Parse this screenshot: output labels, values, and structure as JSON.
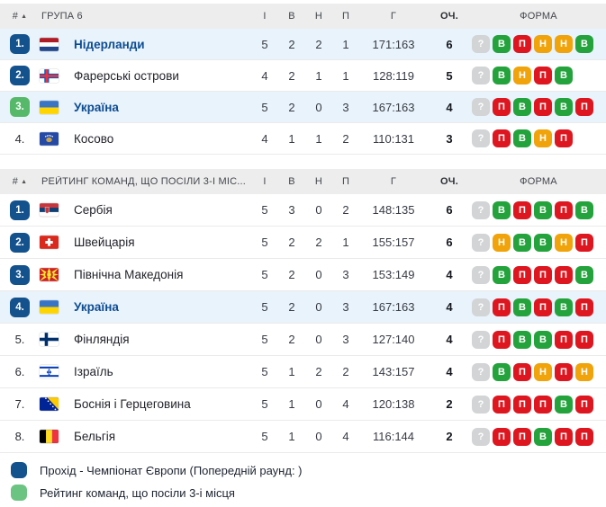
{
  "columns": {
    "pos": "#",
    "games": "І",
    "wins": "В",
    "draws": "Н",
    "losses": "П",
    "goals": "Г",
    "points": "ОЧ.",
    "form": "ФОРМА"
  },
  "colors": {
    "qualify_blue": "#14528D",
    "third_place_green": "#56B96A",
    "form_win": "#24A33C",
    "form_loss": "#DE161F",
    "form_draw": "#F0A30A",
    "form_unknown": "#D2D4D6",
    "highlight_row": "#E9F3FB",
    "team_link": "#0C4C92",
    "legend_green": "#6CC482"
  },
  "tables": [
    {
      "title": "ГРУПА 6",
      "rows": [
        {
          "pos": "1.",
          "badge": "blue",
          "flag": "nl",
          "team": "Нідерланди",
          "highlight": true,
          "games": "5",
          "wins": "2",
          "draws": "2",
          "losses": "1",
          "goals": "171:163",
          "points": "6",
          "form": [
            "?",
            "В",
            "П",
            "Н",
            "Н",
            "В"
          ]
        },
        {
          "pos": "2.",
          "badge": "blue",
          "flag": "fo",
          "team": "Фарерські острови",
          "highlight": false,
          "games": "4",
          "wins": "2",
          "draws": "1",
          "losses": "1",
          "goals": "128:119",
          "points": "5",
          "form": [
            "?",
            "В",
            "Н",
            "П",
            "В"
          ]
        },
        {
          "pos": "3.",
          "badge": "green",
          "flag": "ua",
          "team": "Україна",
          "highlight": true,
          "games": "5",
          "wins": "2",
          "draws": "0",
          "losses": "3",
          "goals": "167:163",
          "points": "4",
          "form": [
            "?",
            "П",
            "В",
            "П",
            "В",
            "П"
          ]
        },
        {
          "pos": "4.",
          "badge": "none",
          "flag": "xk",
          "team": "Косово",
          "highlight": false,
          "games": "4",
          "wins": "1",
          "draws": "1",
          "losses": "2",
          "goals": "110:131",
          "points": "3",
          "form": [
            "?",
            "П",
            "В",
            "Н",
            "П"
          ]
        }
      ]
    },
    {
      "title": "РЕЙТИНГ КОМАНД, ЩО ПОСІЛИ 3-І МІС...",
      "rows": [
        {
          "pos": "1.",
          "badge": "blue",
          "flag": "rs",
          "team": "Сербія",
          "highlight": false,
          "games": "5",
          "wins": "3",
          "draws": "0",
          "losses": "2",
          "goals": "148:135",
          "points": "6",
          "form": [
            "?",
            "В",
            "П",
            "В",
            "П",
            "В"
          ]
        },
        {
          "pos": "2.",
          "badge": "blue",
          "flag": "ch",
          "team": "Швейцарія",
          "highlight": false,
          "games": "5",
          "wins": "2",
          "draws": "2",
          "losses": "1",
          "goals": "155:157",
          "points": "6",
          "form": [
            "?",
            "Н",
            "В",
            "В",
            "Н",
            "П"
          ]
        },
        {
          "pos": "3.",
          "badge": "blue",
          "flag": "mk",
          "team": "Північна Македонія",
          "highlight": false,
          "games": "5",
          "wins": "2",
          "draws": "0",
          "losses": "3",
          "goals": "153:149",
          "points": "4",
          "form": [
            "?",
            "В",
            "П",
            "П",
            "П",
            "В"
          ]
        },
        {
          "pos": "4.",
          "badge": "blue",
          "flag": "ua",
          "team": "Україна",
          "highlight": true,
          "games": "5",
          "wins": "2",
          "draws": "0",
          "losses": "3",
          "goals": "167:163",
          "points": "4",
          "form": [
            "?",
            "П",
            "В",
            "П",
            "В",
            "П"
          ]
        },
        {
          "pos": "5.",
          "badge": "none",
          "flag": "fi",
          "team": "Фінляндія",
          "highlight": false,
          "games": "5",
          "wins": "2",
          "draws": "0",
          "losses": "3",
          "goals": "127:140",
          "points": "4",
          "form": [
            "?",
            "П",
            "В",
            "В",
            "П",
            "П"
          ]
        },
        {
          "pos": "6.",
          "badge": "none",
          "flag": "il",
          "team": "Ізраїль",
          "highlight": false,
          "games": "5",
          "wins": "1",
          "draws": "2",
          "losses": "2",
          "goals": "143:157",
          "points": "4",
          "form": [
            "?",
            "В",
            "П",
            "Н",
            "П",
            "Н"
          ]
        },
        {
          "pos": "7.",
          "badge": "none",
          "flag": "ba",
          "team": "Боснія і Герцеговина",
          "highlight": false,
          "games": "5",
          "wins": "1",
          "draws": "0",
          "losses": "4",
          "goals": "120:138",
          "points": "2",
          "form": [
            "?",
            "П",
            "П",
            "П",
            "В",
            "П"
          ]
        },
        {
          "pos": "8.",
          "badge": "none",
          "flag": "be",
          "team": "Бельгія",
          "highlight": false,
          "games": "5",
          "wins": "1",
          "draws": "0",
          "losses": "4",
          "goals": "116:144",
          "points": "2",
          "form": [
            "?",
            "П",
            "П",
            "В",
            "П",
            "П"
          ]
        }
      ]
    }
  ],
  "legend": [
    {
      "color": "blue",
      "label": "Прохід - Чемпіонат Європи (Попередній раунд: )"
    },
    {
      "color": "green",
      "label": "Рейтинг команд, що посіли 3-і місця"
    }
  ]
}
